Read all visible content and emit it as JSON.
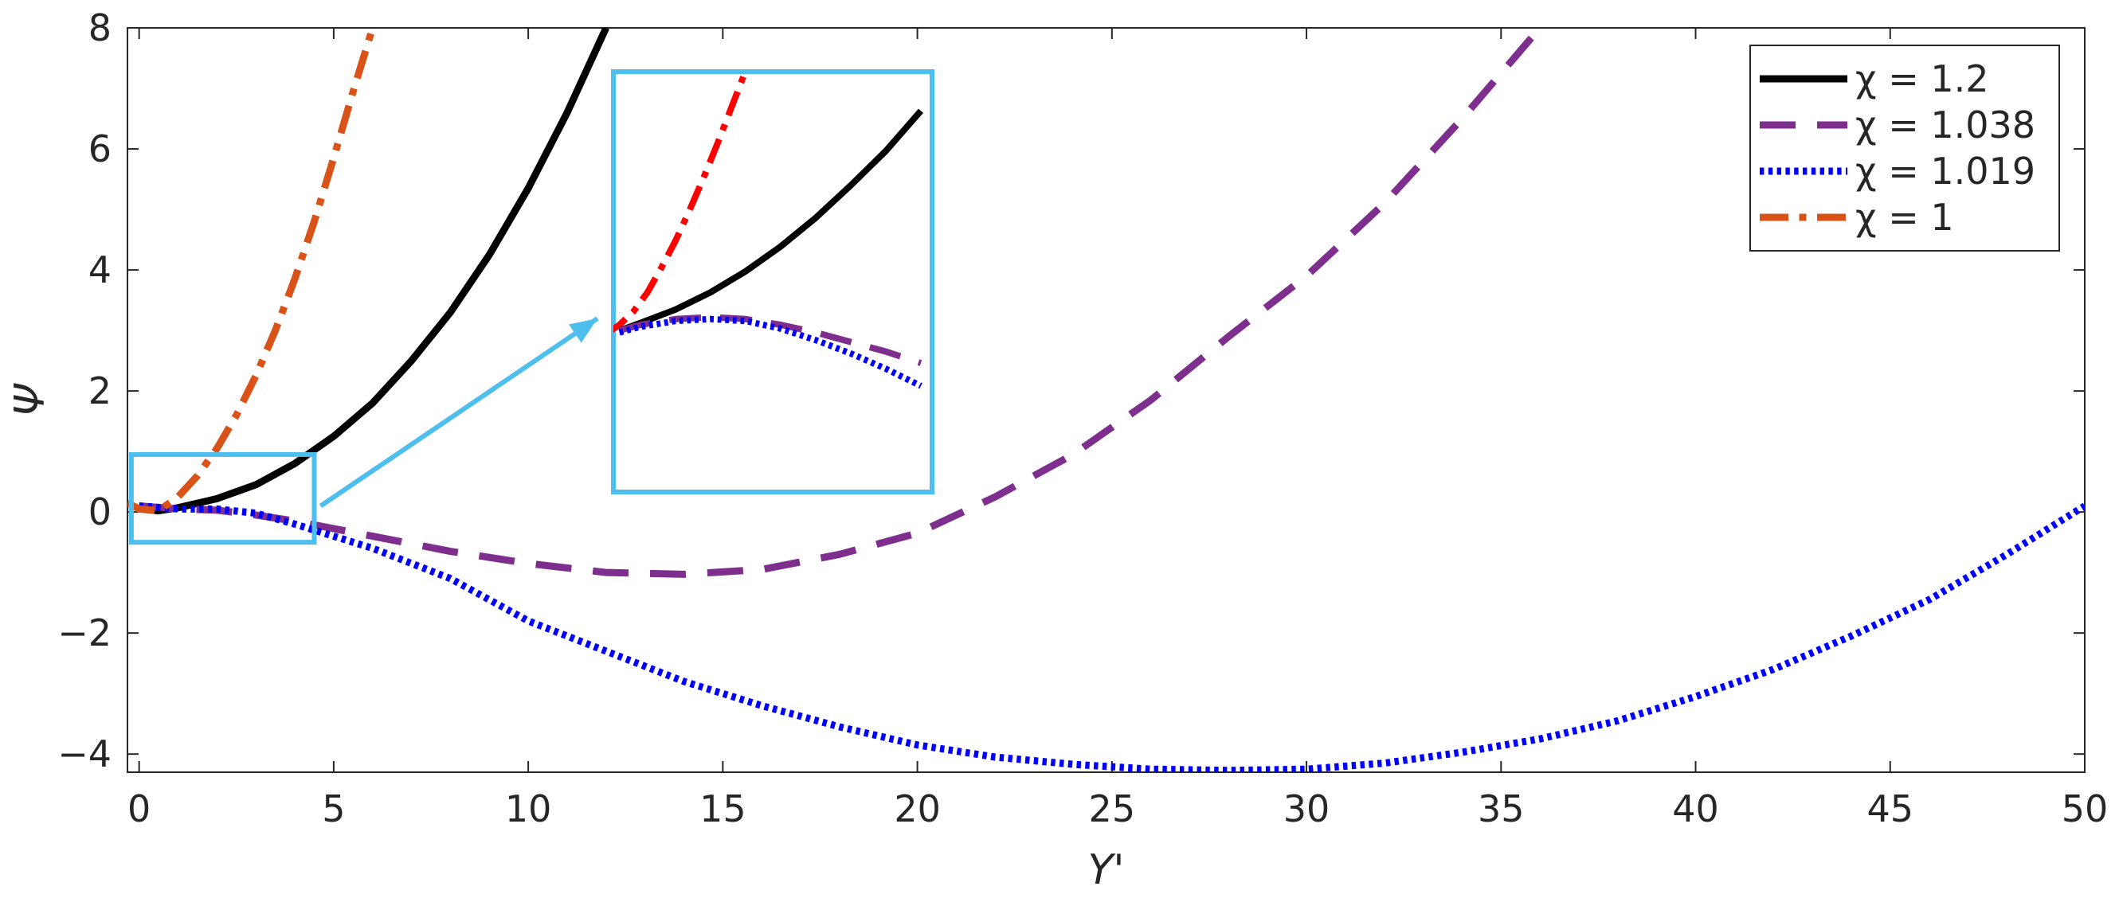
{
  "chart_data": {
    "type": "line",
    "title": "",
    "xlabel": "Y'",
    "ylabel": "Ψ",
    "xlim": [
      -0.3,
      50
    ],
    "ylim": [
      -4.3,
      8
    ],
    "xticks": [
      0,
      5,
      10,
      15,
      20,
      25,
      30,
      35,
      40,
      45,
      50
    ],
    "yticks": [
      -4,
      -2,
      0,
      2,
      4,
      6,
      8
    ],
    "xtick_labels": [
      "0",
      "5",
      "10",
      "15",
      "20",
      "25",
      "30",
      "35",
      "40",
      "45",
      "50"
    ],
    "ytick_labels": [
      "−4",
      "−2",
      "0",
      "2",
      "4",
      "6",
      "8"
    ],
    "grid": false,
    "legend_position": "top-right",
    "series": [
      {
        "name": "χ = 1.2",
        "color": "#000000",
        "style": "solid",
        "x": [
          0,
          0.5,
          1,
          2,
          3,
          4,
          5,
          6,
          7,
          8,
          9,
          10,
          11,
          12
        ],
        "y": [
          0.05,
          0.02,
          0.07,
          0.22,
          0.45,
          0.8,
          1.25,
          1.8,
          2.5,
          3.3,
          4.25,
          5.35,
          6.6,
          8.0
        ]
      },
      {
        "name": "χ = 1.038",
        "color": "#7E2F8E",
        "style": "dashed",
        "x": [
          0,
          1,
          2,
          3,
          4,
          6,
          8,
          10,
          12,
          14,
          16,
          18,
          20,
          22,
          24,
          26,
          28,
          30,
          32,
          34,
          36
        ],
        "y": [
          0.1,
          0.05,
          0.03,
          -0.05,
          -0.15,
          -0.4,
          -0.65,
          -0.85,
          -1.0,
          -1.03,
          -0.95,
          -0.7,
          -0.35,
          0.25,
          0.95,
          1.85,
          2.9,
          3.9,
          5.1,
          6.5,
          8.0
        ]
      },
      {
        "name": "χ = 1.019",
        "color": "#0000FF",
        "style": "dotted",
        "x": [
          0,
          1,
          2,
          3,
          4,
          6,
          8,
          10,
          12,
          14,
          16,
          18,
          20,
          22,
          24,
          26,
          28,
          30,
          32,
          34,
          36,
          38,
          40,
          42,
          44,
          46,
          48,
          50
        ],
        "y": [
          0.1,
          0.05,
          0.05,
          -0.02,
          -0.2,
          -0.6,
          -1.1,
          -1.8,
          -2.3,
          -2.8,
          -3.2,
          -3.55,
          -3.85,
          -4.05,
          -4.17,
          -4.25,
          -4.27,
          -4.25,
          -4.15,
          -3.97,
          -3.75,
          -3.45,
          -3.05,
          -2.6,
          -2.05,
          -1.45,
          -0.7,
          0.1
        ]
      },
      {
        "name": "χ = 1",
        "color": "#D95319",
        "style": "dashdot",
        "x": [
          -0.3,
          0,
          0.5,
          1,
          1.5,
          2,
          2.5,
          3,
          3.5,
          4,
          4.5,
          5,
          5.5,
          6
        ],
        "y": [
          0.15,
          0.05,
          0.02,
          0.25,
          0.6,
          1.05,
          1.6,
          2.25,
          3.0,
          3.85,
          4.8,
          5.85,
          6.95,
          8.0
        ]
      }
    ],
    "inset": {
      "zoom_region": {
        "xlim": [
          -0.2,
          4.5
        ],
        "ylim": [
          -0.5,
          0.95
        ]
      },
      "box_color": "#4DBEEE",
      "series": [
        {
          "color": "#FF0000",
          "style": "dashdot",
          "x": [
            0,
            0.4,
            0.8,
            1.2,
            1.6,
            2.0,
            2.4,
            2.8,
            3.2,
            3.6,
            4.0
          ],
          "y": [
            0.0,
            0.05,
            0.12,
            0.22,
            0.35,
            0.49,
            0.65,
            0.82,
            1.0,
            1.19,
            1.38
          ]
        },
        {
          "color": "#000000",
          "style": "solid",
          "x": [
            0.4,
            1.0,
            2.0,
            3.0,
            4.0,
            5.0,
            6.0,
            7.0,
            8.0,
            9.0
          ],
          "y": [
            0.02,
            0.06,
            0.13,
            0.22,
            0.33,
            0.46,
            0.61,
            0.78,
            0.96,
            1.17
          ]
        },
        {
          "color": "#7E2F8E",
          "style": "dashed",
          "x": [
            0.4,
            1.0,
            2.0,
            3.0,
            4.0,
            5.0,
            6.0,
            7.0,
            8.0,
            9.0
          ],
          "y": [
            0.02,
            0.05,
            0.08,
            0.09,
            0.08,
            0.05,
            0.01,
            -0.04,
            -0.09,
            -0.15
          ]
        },
        {
          "color": "#0000FF",
          "style": "dotted",
          "x": [
            0.4,
            1.0,
            2.0,
            3.0,
            4.0,
            5.0,
            6.0,
            7.0,
            8.0,
            9.0
          ],
          "y": [
            0.01,
            0.04,
            0.07,
            0.08,
            0.07,
            0.03,
            -0.03,
            -0.1,
            -0.18,
            -0.27
          ]
        }
      ]
    }
  }
}
